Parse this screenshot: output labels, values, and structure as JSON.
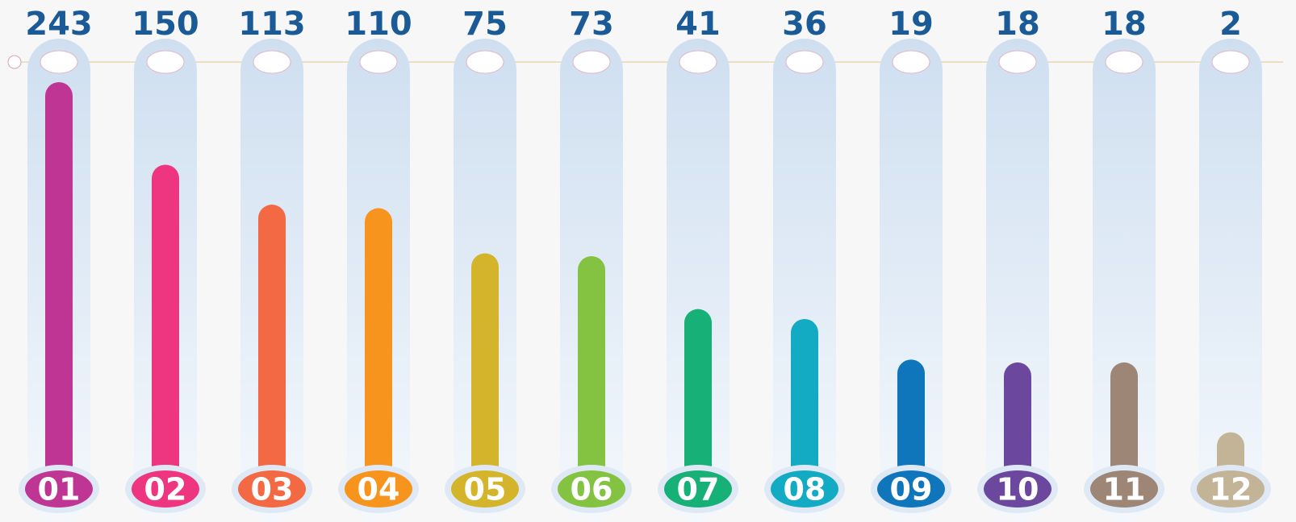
{
  "chart_data": {
    "type": "bar",
    "categories": [
      "01",
      "02",
      "03",
      "04",
      "05",
      "06",
      "07",
      "08",
      "09",
      "10",
      "11",
      "12"
    ],
    "values": [
      243,
      150,
      113,
      110,
      75,
      73,
      41,
      36,
      19,
      18,
      18,
      2
    ],
    "colors": [
      "#bf3594",
      "#ee3580",
      "#f26944",
      "#f7941d",
      "#d4b42a",
      "#84c341",
      "#17b076",
      "#13abc4",
      "#1076bb",
      "#6b479e",
      "#9e8676",
      "#c4b497"
    ]
  }
}
